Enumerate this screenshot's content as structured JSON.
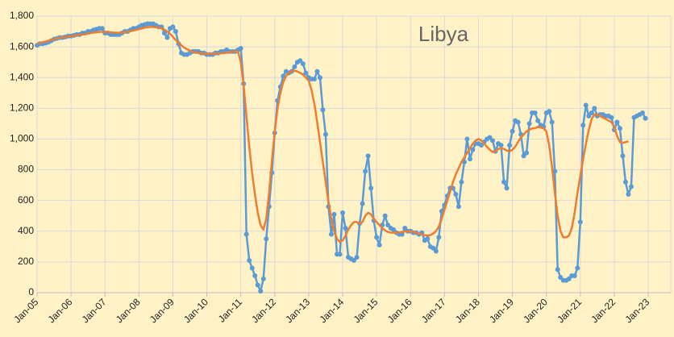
{
  "chart_data": {
    "type": "line",
    "title": "Libya",
    "x": [
      "2005-01",
      "2005-02",
      "2005-03",
      "2005-04",
      "2005-05",
      "2005-06",
      "2005-07",
      "2005-08",
      "2005-09",
      "2005-10",
      "2005-11",
      "2005-12",
      "2006-01",
      "2006-02",
      "2006-03",
      "2006-04",
      "2006-05",
      "2006-06",
      "2006-07",
      "2006-08",
      "2006-09",
      "2006-10",
      "2006-11",
      "2006-12",
      "2007-01",
      "2007-02",
      "2007-03",
      "2007-04",
      "2007-05",
      "2007-06",
      "2007-07",
      "2007-08",
      "2007-09",
      "2007-10",
      "2007-11",
      "2007-12",
      "2008-01",
      "2008-02",
      "2008-03",
      "2008-04",
      "2008-05",
      "2008-06",
      "2008-07",
      "2008-08",
      "2008-09",
      "2008-10",
      "2008-11",
      "2008-12",
      "2009-01",
      "2009-02",
      "2009-03",
      "2009-04",
      "2009-05",
      "2009-06",
      "2009-07",
      "2009-08",
      "2009-09",
      "2009-10",
      "2009-11",
      "2009-12",
      "2010-01",
      "2010-02",
      "2010-03",
      "2010-04",
      "2010-05",
      "2010-06",
      "2010-07",
      "2010-08",
      "2010-09",
      "2010-10",
      "2010-11",
      "2010-12",
      "2011-01",
      "2011-02",
      "2011-03",
      "2011-04",
      "2011-05",
      "2011-06",
      "2011-07",
      "2011-08",
      "2011-09",
      "2011-10",
      "2011-11",
      "2011-12",
      "2012-01",
      "2012-02",
      "2012-03",
      "2012-04",
      "2012-05",
      "2012-06",
      "2012-07",
      "2012-08",
      "2012-09",
      "2012-10",
      "2012-11",
      "2012-12",
      "2013-01",
      "2013-02",
      "2013-03",
      "2013-04",
      "2013-05",
      "2013-06",
      "2013-07",
      "2013-08",
      "2013-09",
      "2013-10",
      "2013-11",
      "2013-12",
      "2014-01",
      "2014-02",
      "2014-03",
      "2014-04",
      "2014-05",
      "2014-06",
      "2014-07",
      "2014-08",
      "2014-09",
      "2014-10",
      "2014-11",
      "2014-12",
      "2015-01",
      "2015-02",
      "2015-03",
      "2015-04",
      "2015-05",
      "2015-06",
      "2015-07",
      "2015-08",
      "2015-09",
      "2015-10",
      "2015-11",
      "2015-12",
      "2016-01",
      "2016-02",
      "2016-03",
      "2016-04",
      "2016-05",
      "2016-06",
      "2016-07",
      "2016-08",
      "2016-09",
      "2016-10",
      "2016-11",
      "2016-12",
      "2017-01",
      "2017-02",
      "2017-03",
      "2017-04",
      "2017-05",
      "2017-06",
      "2017-07",
      "2017-08",
      "2017-09",
      "2017-10",
      "2017-11",
      "2017-12",
      "2018-01",
      "2018-02",
      "2018-03",
      "2018-04",
      "2018-05",
      "2018-06",
      "2018-07",
      "2018-08",
      "2018-09",
      "2018-10",
      "2018-11",
      "2018-12",
      "2019-01",
      "2019-02",
      "2019-03",
      "2019-04",
      "2019-05",
      "2019-06",
      "2019-07",
      "2019-08",
      "2019-09",
      "2019-10",
      "2019-11",
      "2019-12",
      "2020-01",
      "2020-02",
      "2020-03",
      "2020-04",
      "2020-05",
      "2020-06",
      "2020-07",
      "2020-08",
      "2020-09",
      "2020-10",
      "2020-11",
      "2020-12",
      "2021-01",
      "2021-02",
      "2021-03",
      "2021-04",
      "2021-05",
      "2021-06",
      "2021-07",
      "2021-08",
      "2021-09",
      "2021-10",
      "2021-11",
      "2021-12",
      "2022-01",
      "2022-02",
      "2022-03",
      "2022-04",
      "2022-05",
      "2022-06",
      "2022-07",
      "2022-08",
      "2022-09",
      "2022-10",
      "2022-11",
      "2022-12"
    ],
    "series": [
      {
        "color": "#5b9bd5",
        "markers": true,
        "values": [
          1610,
          1620,
          1620,
          1625,
          1630,
          1640,
          1650,
          1655,
          1660,
          1660,
          1665,
          1670,
          1670,
          1675,
          1680,
          1680,
          1690,
          1690,
          1700,
          1700,
          1710,
          1715,
          1720,
          1720,
          1690,
          1690,
          1680,
          1680,
          1680,
          1680,
          1690,
          1700,
          1700,
          1710,
          1720,
          1720,
          1730,
          1740,
          1745,
          1750,
          1750,
          1750,
          1740,
          1730,
          1730,
          1690,
          1660,
          1720,
          1730,
          1700,
          1620,
          1560,
          1550,
          1550,
          1560,
          1570,
          1570,
          1570,
          1560,
          1560,
          1550,
          1550,
          1550,
          1560,
          1560,
          1570,
          1570,
          1580,
          1570,
          1570,
          1570,
          1580,
          1590,
          1360,
          380,
          210,
          160,
          110,
          50,
          10,
          90,
          350,
          560,
          780,
          1040,
          1250,
          1340,
          1410,
          1440,
          1430,
          1440,
          1470,
          1500,
          1510,
          1490,
          1430,
          1400,
          1390,
          1390,
          1440,
          1400,
          1190,
          1030,
          560,
          380,
          510,
          250,
          250,
          520,
          420,
          230,
          220,
          210,
          230,
          450,
          580,
          790,
          890,
          680,
          470,
          360,
          310,
          440,
          500,
          440,
          420,
          410,
          390,
          380,
          380,
          420,
          400,
          400,
          390,
          390,
          380,
          390,
          340,
          350,
          300,
          290,
          270,
          360,
          530,
          570,
          630,
          680,
          680,
          640,
          560,
          720,
          850,
          1000,
          870,
          930,
          970,
          970,
          960,
          980,
          1000,
          1010,
          990,
          920,
          970,
          960,
          720,
          680,
          960,
          1050,
          1120,
          1110,
          1030,
          890,
          910,
          1100,
          1170,
          1170,
          1120,
          1090,
          1080,
          1170,
          1180,
          1110,
          790,
          150,
          100,
          80,
          80,
          90,
          110,
          110,
          160,
          460,
          1090,
          1220,
          1150,
          1170,
          1200,
          1150,
          1160,
          1160,
          1150,
          1150,
          1140,
          1060,
          1110,
          1070,
          890,
          720,
          640,
          690,
          1140,
          1150,
          1160,
          1170,
          1135
        ]
      },
      {
        "color": "#ed7d31",
        "markers": false,
        "values": [
          1620,
          1625,
          1630,
          1635,
          1640,
          1645,
          1650,
          1655,
          1660,
          1662,
          1665,
          1668,
          1670,
          1672,
          1675,
          1678,
          1680,
          1683,
          1686,
          1690,
          1693,
          1695,
          1697,
          1698,
          1698,
          1697,
          1695,
          1693,
          1692,
          1692,
          1693,
          1695,
          1698,
          1702,
          1706,
          1710,
          1715,
          1720,
          1725,
          1728,
          1730,
          1730,
          1728,
          1725,
          1720,
          1712,
          1700,
          1685,
          1665,
          1645,
          1625,
          1610,
          1595,
          1585,
          1575,
          1568,
          1563,
          1560,
          1558,
          1556,
          1555,
          1555,
          1555,
          1556,
          1557,
          1558,
          1560,
          1562,
          1565,
          1568,
          1570,
          1570,
          1500,
          1350,
          1150,
          950,
          780,
          640,
          520,
          440,
          410,
          480,
          650,
          860,
          1050,
          1200,
          1300,
          1370,
          1410,
          1430,
          1440,
          1445,
          1440,
          1430,
          1420,
          1400,
          1380,
          1320,
          1230,
          1110,
          980,
          850,
          720,
          590,
          480,
          400,
          350,
          330,
          340,
          370,
          410,
          440,
          460,
          460,
          450,
          460,
          500,
          520,
          510,
          480,
          460,
          440,
          420,
          405,
          395,
          390,
          390,
          390,
          392,
          395,
          398,
          400,
          398,
          395,
          390,
          385,
          380,
          375,
          370,
          375,
          385,
          400,
          430,
          480,
          540,
          600,
          660,
          720,
          770,
          810,
          850,
          880,
          910,
          940,
          970,
          990,
          1000,
          990,
          970,
          950,
          930,
          915,
          920,
          935,
          940,
          935,
          925,
          920,
          930,
          950,
          980,
          1010,
          1030,
          1050,
          1060,
          1070,
          1070,
          1080,
          1075,
          1070,
          1050,
          960,
          820,
          650,
          500,
          400,
          360,
          360,
          370,
          420,
          520,
          650,
          760,
          870,
          970,
          1060,
          1130,
          1160,
          1160,
          1150,
          1140,
          1130,
          1120,
          1110,
          1080,
          1020,
          980,
          975,
          980,
          985,
          null,
          null,
          null,
          null,
          null,
          null
        ]
      }
    ],
    "xlim": [
      "2005-01",
      "2023-01"
    ],
    "xticks": [
      {
        "value": "2005-01",
        "label": "Jan-05"
      },
      {
        "value": "2006-01",
        "label": "Jan-06"
      },
      {
        "value": "2007-01",
        "label": "Jan-07"
      },
      {
        "value": "2008-01",
        "label": "Jan-08"
      },
      {
        "value": "2009-01",
        "label": "Jan-09"
      },
      {
        "value": "2010-01",
        "label": "Jan-10"
      },
      {
        "value": "2011-01",
        "label": "Jan-11"
      },
      {
        "value": "2012-01",
        "label": "Jan-12"
      },
      {
        "value": "2013-01",
        "label": "Jan-13"
      },
      {
        "value": "2014-01",
        "label": "Jan-14"
      },
      {
        "value": "2015-01",
        "label": "Jan-15"
      },
      {
        "value": "2016-01",
        "label": "Jan-16"
      },
      {
        "value": "2017-01",
        "label": "Jan-17"
      },
      {
        "value": "2018-01",
        "label": "Jan-18"
      },
      {
        "value": "2019-01",
        "label": "Jan-19"
      },
      {
        "value": "2020-01",
        "label": "Jan-20"
      },
      {
        "value": "2021-01",
        "label": "Jan-21"
      },
      {
        "value": "2022-01",
        "label": "Jan-22"
      },
      {
        "value": "2023-01",
        "label": "Jan-23"
      }
    ],
    "ylim": [
      0,
      1800
    ],
    "yticks": [
      0,
      200,
      400,
      600,
      800,
      {
        "value": 1000,
        "label": "1,000"
      },
      {
        "value": 1200,
        "label": "1,200"
      },
      {
        "value": 1400,
        "label": "1,400"
      },
      {
        "value": 1600,
        "label": "1,600"
      },
      {
        "value": 1800,
        "label": "1,800"
      }
    ],
    "grid": true
  }
}
